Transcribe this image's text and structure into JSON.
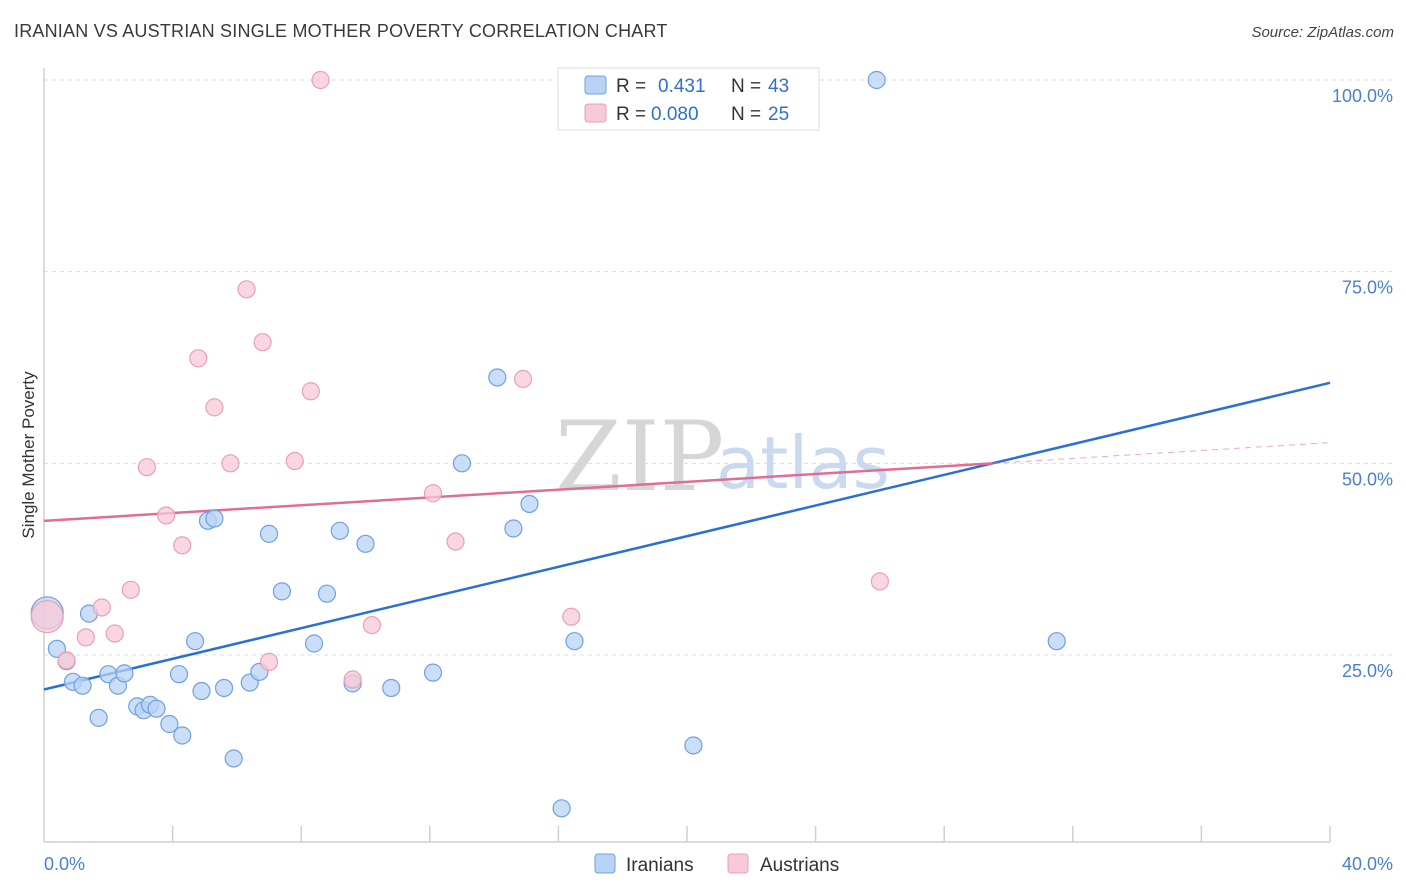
{
  "title": "IRANIAN VS AUSTRIAN SINGLE MOTHER POVERTY CORRELATION CHART",
  "source": "Source: ZipAtlas.com",
  "watermark": {
    "zip": "ZIP",
    "atlas": "atlas"
  },
  "colors": {
    "iranian_fill": "#b9d3f5",
    "iranian_stroke": "#6fa0e0",
    "iranian_line": "#2a6fd4",
    "austrian_fill": "#f8c9d6",
    "austrian_stroke": "#e9a0b5",
    "austrian_line": "#e06d96",
    "tick_text": "#4a7fd1",
    "grid": "#dddddd"
  },
  "chart_data": {
    "type": "scatter",
    "title": "IRANIAN VS AUSTRIAN SINGLE MOTHER POVERTY CORRELATION CHART",
    "xlabel": "",
    "ylabel": "Single Mother Poverty",
    "xlim": [
      0,
      40
    ],
    "ylim": [
      0,
      105
    ],
    "x_tick_labels": [
      "0.0%",
      "40.0%"
    ],
    "y_ticks": [
      25,
      50,
      75,
      100
    ],
    "y_tick_labels": [
      "25.0%",
      "50.0%",
      "75.0%",
      "100.0%"
    ],
    "legend": [
      {
        "r_label": "R =",
        "r_value": "0.431",
        "n_label": "N =",
        "n_value": "43"
      },
      {
        "r_label": "R =",
        "r_value": "0.080",
        "n_label": "N =",
        "n_value": "25"
      }
    ],
    "series": [
      {
        "name": "Iranians",
        "trend": {
          "x0": 0,
          "y0": 20.5,
          "x1": 40,
          "y1": 60.5
        },
        "points": [
          [
            0.1,
            30.5
          ],
          [
            0.4,
            25.8
          ],
          [
            0.7,
            24.2
          ],
          [
            0.9,
            21.5
          ],
          [
            1.2,
            21.0
          ],
          [
            1.4,
            30.4
          ],
          [
            1.7,
            16.8
          ],
          [
            2.0,
            22.5
          ],
          [
            2.3,
            21.0
          ],
          [
            2.5,
            22.6
          ],
          [
            2.9,
            18.3
          ],
          [
            3.1,
            17.8
          ],
          [
            3.3,
            18.5
          ],
          [
            3.5,
            18.0
          ],
          [
            3.9,
            16.0
          ],
          [
            4.2,
            22.5
          ],
          [
            4.3,
            14.5
          ],
          [
            4.7,
            26.8
          ],
          [
            4.9,
            20.3
          ],
          [
            5.1,
            42.5
          ],
          [
            5.3,
            42.8
          ],
          [
            5.6,
            20.7
          ],
          [
            5.9,
            11.5
          ],
          [
            6.4,
            21.4
          ],
          [
            6.7,
            22.8
          ],
          [
            7.0,
            40.8
          ],
          [
            7.4,
            33.3
          ],
          [
            8.4,
            26.5
          ],
          [
            8.8,
            33.0
          ],
          [
            9.2,
            41.2
          ],
          [
            9.6,
            21.3
          ],
          [
            10.0,
            39.5
          ],
          [
            10.8,
            20.7
          ],
          [
            12.1,
            22.7
          ],
          [
            13.0,
            50.0
          ],
          [
            14.1,
            61.2
          ],
          [
            14.6,
            41.5
          ],
          [
            15.1,
            44.7
          ],
          [
            16.1,
            5.0
          ],
          [
            16.5,
            26.8
          ],
          [
            20.2,
            13.2
          ],
          [
            25.9,
            100.0
          ],
          [
            31.5,
            26.8
          ]
        ]
      },
      {
        "name": "Austrians",
        "trend": {
          "x0": 0,
          "y0": 42.5,
          "x1": 29.5,
          "y1": 50.0,
          "dash_x1": 40,
          "dash_y1": 52.7
        },
        "points": [
          [
            0.1,
            30.0
          ],
          [
            0.7,
            24.3
          ],
          [
            1.3,
            27.3
          ],
          [
            1.8,
            31.2
          ],
          [
            2.2,
            27.8
          ],
          [
            2.7,
            33.5
          ],
          [
            3.2,
            49.5
          ],
          [
            3.8,
            43.2
          ],
          [
            4.3,
            39.3
          ],
          [
            4.8,
            63.7
          ],
          [
            5.3,
            57.3
          ],
          [
            5.8,
            50.0
          ],
          [
            6.3,
            72.7
          ],
          [
            6.8,
            65.8
          ],
          [
            7.0,
            24.1
          ],
          [
            7.8,
            50.3
          ],
          [
            8.3,
            59.4
          ],
          [
            8.6,
            100.0
          ],
          [
            9.6,
            21.8
          ],
          [
            10.2,
            28.9
          ],
          [
            12.1,
            46.1
          ],
          [
            12.8,
            39.8
          ],
          [
            14.9,
            61.0
          ],
          [
            16.4,
            30.0
          ],
          [
            26.0,
            34.6
          ]
        ]
      }
    ]
  }
}
